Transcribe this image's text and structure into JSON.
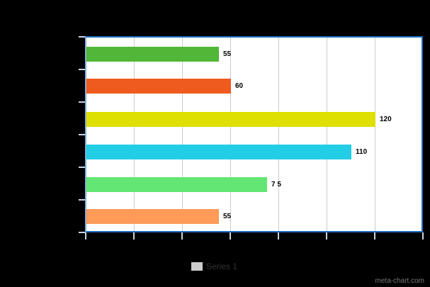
{
  "chart_data": {
    "type": "bar",
    "orientation": "horizontal",
    "title": "",
    "xlabel": "",
    "ylabel": "",
    "categories": [
      "",
      "",
      "",
      "",
      "",
      ""
    ],
    "series": [
      {
        "name": "Series 1",
        "values": [
          55,
          60,
          120,
          110,
          75,
          55
        ]
      }
    ],
    "data_labels": [
      "55",
      "60",
      "120",
      "110",
      "7 5",
      "55"
    ],
    "bar_colors": [
      "#52b738",
      "#ef5a1e",
      "#dde000",
      "#22cde5",
      "#63e673",
      "#ff9a59"
    ],
    "xlim": [
      0,
      140
    ],
    "x_tick_step": 20,
    "grid": true,
    "legend_position": "bottom"
  },
  "legend": {
    "label": "Series 1",
    "swatch_color": "#cccccc"
  },
  "watermark": "meta-chart.com"
}
